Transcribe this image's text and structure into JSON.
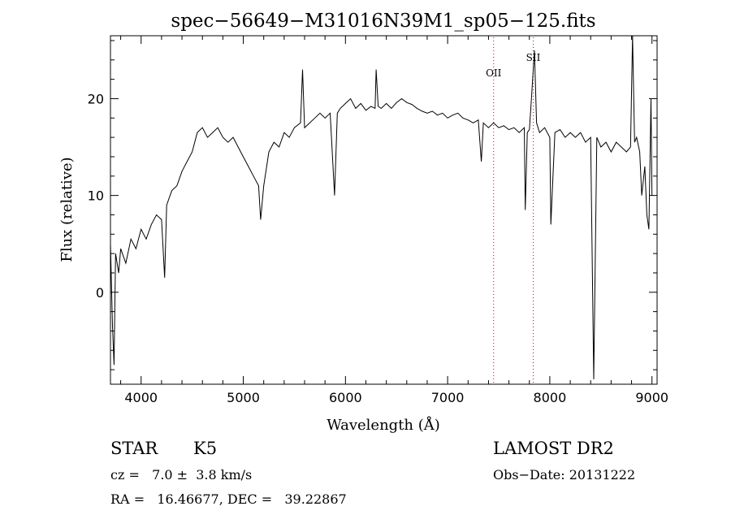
{
  "chart_data": {
    "type": "line",
    "title": "spec−56649−M31016N39M1_sp05−125.fits",
    "xlabel": "Wavelength (Å)",
    "ylabel": "Flux (relative)",
    "xlim": [
      3700,
      9050
    ],
    "ylim": [
      -9.5,
      26.5
    ],
    "x_ticks": [
      4000,
      5000,
      6000,
      7000,
      8000,
      9000
    ],
    "y_ticks": [
      0,
      10,
      20
    ],
    "x_tick_labels": [
      "4000",
      "5000",
      "6000",
      "7000",
      "8000",
      "9000"
    ],
    "y_tick_labels": [
      "0",
      "10",
      "20"
    ],
    "grid": false,
    "line_markers": [
      {
        "label": "OII",
        "wavelength": 7450,
        "label_flux": 22.3
      },
      {
        "label": "SII",
        "wavelength": 7838,
        "label_flux": 23.9
      }
    ],
    "series": [
      {
        "color": "#000000",
        "points": [
          [
            3700,
            5.0
          ],
          [
            3720,
            -3.5
          ],
          [
            3735,
            -7.5
          ],
          [
            3750,
            4.0
          ],
          [
            3780,
            2.0
          ],
          [
            3800,
            4.5
          ],
          [
            3850,
            3.0
          ],
          [
            3900,
            5.5
          ],
          [
            3950,
            4.5
          ],
          [
            4000,
            6.5
          ],
          [
            4050,
            5.5
          ],
          [
            4100,
            7.0
          ],
          [
            4150,
            8.0
          ],
          [
            4200,
            7.5
          ],
          [
            4230,
            1.5
          ],
          [
            4250,
            9.0
          ],
          [
            4300,
            10.5
          ],
          [
            4350,
            11.0
          ],
          [
            4400,
            12.5
          ],
          [
            4450,
            13.5
          ],
          [
            4500,
            14.5
          ],
          [
            4550,
            16.5
          ],
          [
            4600,
            17.0
          ],
          [
            4650,
            16.0
          ],
          [
            4700,
            16.5
          ],
          [
            4750,
            17.0
          ],
          [
            4800,
            16.0
          ],
          [
            4850,
            15.5
          ],
          [
            4900,
            16.0
          ],
          [
            4950,
            15.0
          ],
          [
            5000,
            14.0
          ],
          [
            5050,
            13.0
          ],
          [
            5100,
            12.0
          ],
          [
            5150,
            11.0
          ],
          [
            5170,
            7.5
          ],
          [
            5200,
            11.0
          ],
          [
            5250,
            14.5
          ],
          [
            5300,
            15.5
          ],
          [
            5350,
            15.0
          ],
          [
            5400,
            16.5
          ],
          [
            5450,
            16.0
          ],
          [
            5500,
            17.0
          ],
          [
            5560,
            17.5
          ],
          [
            5580,
            23.0
          ],
          [
            5600,
            17.0
          ],
          [
            5650,
            17.5
          ],
          [
            5700,
            18.0
          ],
          [
            5750,
            18.5
          ],
          [
            5800,
            18.0
          ],
          [
            5850,
            18.5
          ],
          [
            5893,
            10.0
          ],
          [
            5920,
            18.5
          ],
          [
            5950,
            19.0
          ],
          [
            6000,
            19.5
          ],
          [
            6050,
            20.0
          ],
          [
            6100,
            19.0
          ],
          [
            6150,
            19.5
          ],
          [
            6200,
            18.8
          ],
          [
            6250,
            19.2
          ],
          [
            6290,
            19.0
          ],
          [
            6300,
            23.0
          ],
          [
            6320,
            19.2
          ],
          [
            6350,
            19.0
          ],
          [
            6400,
            19.5
          ],
          [
            6450,
            19.0
          ],
          [
            6500,
            19.6
          ],
          [
            6550,
            20.0
          ],
          [
            6600,
            19.6
          ],
          [
            6650,
            19.4
          ],
          [
            6700,
            19.0
          ],
          [
            6750,
            18.7
          ],
          [
            6800,
            18.5
          ],
          [
            6850,
            18.7
          ],
          [
            6900,
            18.3
          ],
          [
            6950,
            18.5
          ],
          [
            7000,
            18.0
          ],
          [
            7050,
            18.3
          ],
          [
            7100,
            18.5
          ],
          [
            7150,
            18.0
          ],
          [
            7200,
            17.8
          ],
          [
            7250,
            17.5
          ],
          [
            7300,
            17.8
          ],
          [
            7330,
            13.5
          ],
          [
            7350,
            17.5
          ],
          [
            7400,
            17.0
          ],
          [
            7450,
            17.5
          ],
          [
            7500,
            17.0
          ],
          [
            7550,
            17.2
          ],
          [
            7600,
            16.8
          ],
          [
            7650,
            17.0
          ],
          [
            7700,
            16.5
          ],
          [
            7750,
            17.0
          ],
          [
            7760,
            8.5
          ],
          [
            7780,
            16.5
          ],
          [
            7800,
            16.8
          ],
          [
            7820,
            20.0
          ],
          [
            7850,
            25.0
          ],
          [
            7870,
            17.5
          ],
          [
            7900,
            16.5
          ],
          [
            7950,
            17.0
          ],
          [
            8000,
            16.0
          ],
          [
            8010,
            7.0
          ],
          [
            8050,
            16.5
          ],
          [
            8100,
            16.8
          ],
          [
            8150,
            16.0
          ],
          [
            8200,
            16.5
          ],
          [
            8250,
            16.0
          ],
          [
            8300,
            16.5
          ],
          [
            8350,
            15.5
          ],
          [
            8400,
            16.0
          ],
          [
            8430,
            -9.0
          ],
          [
            8460,
            16.0
          ],
          [
            8500,
            15.0
          ],
          [
            8550,
            15.5
          ],
          [
            8600,
            14.5
          ],
          [
            8650,
            15.5
          ],
          [
            8700,
            15.0
          ],
          [
            8750,
            14.5
          ],
          [
            8790,
            15.0
          ],
          [
            8810,
            26.5
          ],
          [
            8830,
            15.5
          ],
          [
            8850,
            16.0
          ],
          [
            8880,
            14.5
          ],
          [
            8900,
            10.0
          ],
          [
            8930,
            13.0
          ],
          [
            8950,
            8.0
          ],
          [
            8970,
            6.5
          ],
          [
            8990,
            20.0
          ],
          [
            9000,
            10.0
          ]
        ]
      }
    ]
  },
  "footer": {
    "classification": "STAR",
    "subclass": "K5",
    "survey": "LAMOST DR2",
    "redshift": "cz =   7.0 ±  3.8 km/s",
    "obs_date": "Obs−Date: 20131222",
    "coords": "RA =   16.46677, DEC =   39.22867"
  }
}
